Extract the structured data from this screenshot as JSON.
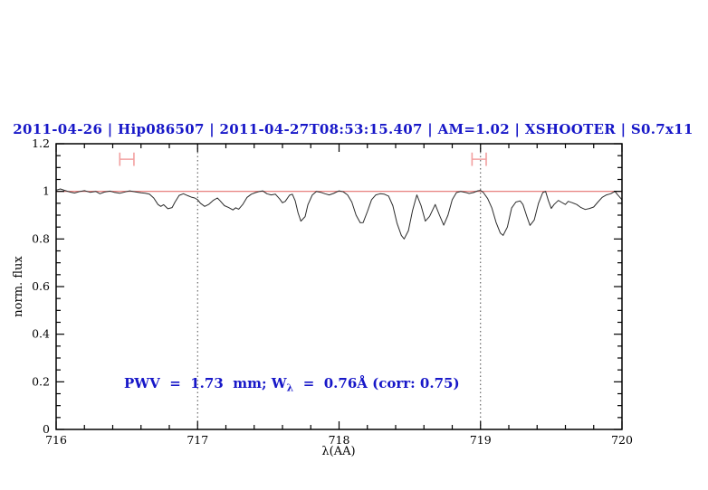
{
  "chart_data": {
    "type": "line",
    "title": "2011-04-26 | Hip086507 | 2011-04-27T08:53:15.407 | AM=1.02 | XSHOOTER | S0.7x11",
    "title_color": "#1717c8",
    "xlabel": "λ(AA)",
    "ylabel": "norm. flux",
    "xlim": [
      716,
      720
    ],
    "ylim": [
      0,
      1.2
    ],
    "grid": "off",
    "x_major_ticks": [
      716,
      717,
      718,
      719,
      720
    ],
    "x_tick_labels": [
      "716",
      "717",
      "718",
      "719",
      "720"
    ],
    "x_minor_step": 0.2,
    "y_major_ticks": [
      0,
      0.2,
      0.4,
      0.6,
      0.8,
      1,
      1.2
    ],
    "y_tick_labels": [
      "0",
      "0.2",
      "0.4",
      "0.6",
      "0.8",
      "1",
      "1.2"
    ],
    "y_minor_step": 0.05,
    "vlines": {
      "x": [
        717,
        719
      ],
      "style": "dotted",
      "color": "#4a4a4a"
    },
    "continuum": {
      "y": 1.0,
      "color": "#e4706e"
    },
    "band_markers": [
      {
        "x_from": 716.45,
        "x_to": 716.55,
        "y": 1.135,
        "cap_half_height": 0.028
      },
      {
        "x_from": 718.94,
        "x_to": 719.04,
        "y": 1.135,
        "cap_half_height": 0.028
      }
    ],
    "band_marker_color": "#f2a0a0",
    "annotation": {
      "prefix": "PWV  =  1.73  mm; W",
      "sub": "λ",
      "suffix": "  =  0.76Å (corr: 0.75)",
      "color": "#1717c8"
    },
    "series": [
      {
        "name": "spectrum",
        "color": "#2b2b2b",
        "points": [
          [
            716.0,
            1.005
          ],
          [
            716.03,
            1.01
          ],
          [
            716.06,
            1.004
          ],
          [
            716.1,
            0.997
          ],
          [
            716.13,
            0.993
          ],
          [
            716.17,
            1.0
          ],
          [
            716.2,
            1.003
          ],
          [
            716.24,
            0.996
          ],
          [
            716.28,
            1.0
          ],
          [
            716.31,
            0.99
          ],
          [
            716.34,
            0.997
          ],
          [
            716.38,
            1.001
          ],
          [
            716.41,
            0.996
          ],
          [
            716.45,
            0.992
          ],
          [
            716.49,
            0.998
          ],
          [
            716.52,
            1.002
          ],
          [
            716.56,
            0.998
          ],
          [
            716.6,
            0.994
          ],
          [
            716.63,
            0.992
          ],
          [
            716.66,
            0.988
          ],
          [
            716.69,
            0.972
          ],
          [
            716.72,
            0.945
          ],
          [
            716.74,
            0.937
          ],
          [
            716.76,
            0.944
          ],
          [
            716.79,
            0.927
          ],
          [
            716.82,
            0.932
          ],
          [
            716.84,
            0.955
          ],
          [
            716.87,
            0.983
          ],
          [
            716.9,
            0.99
          ],
          [
            716.93,
            0.982
          ],
          [
            716.96,
            0.975
          ],
          [
            716.98,
            0.972
          ],
          [
            717.0,
            0.965
          ],
          [
            717.02,
            0.95
          ],
          [
            717.05,
            0.937
          ],
          [
            717.08,
            0.946
          ],
          [
            717.11,
            0.962
          ],
          [
            717.14,
            0.972
          ],
          [
            717.16,
            0.96
          ],
          [
            717.19,
            0.94
          ],
          [
            717.22,
            0.932
          ],
          [
            717.25,
            0.922
          ],
          [
            717.27,
            0.931
          ],
          [
            717.29,
            0.925
          ],
          [
            717.32,
            0.946
          ],
          [
            717.35,
            0.975
          ],
          [
            717.38,
            0.988
          ],
          [
            717.41,
            0.995
          ],
          [
            717.44,
            1.0
          ],
          [
            717.46,
            1.002
          ],
          [
            717.49,
            0.99
          ],
          [
            717.52,
            0.985
          ],
          [
            717.55,
            0.988
          ],
          [
            717.58,
            0.968
          ],
          [
            717.6,
            0.952
          ],
          [
            717.62,
            0.958
          ],
          [
            717.65,
            0.984
          ],
          [
            717.67,
            0.988
          ],
          [
            717.69,
            0.96
          ],
          [
            717.71,
            0.91
          ],
          [
            717.73,
            0.875
          ],
          [
            717.76,
            0.894
          ],
          [
            717.78,
            0.944
          ],
          [
            717.81,
            0.984
          ],
          [
            717.84,
            1.0
          ],
          [
            717.87,
            0.996
          ],
          [
            717.9,
            0.99
          ],
          [
            717.93,
            0.985
          ],
          [
            717.96,
            0.991
          ],
          [
            718.0,
            1.002
          ],
          [
            718.03,
            0.998
          ],
          [
            718.06,
            0.985
          ],
          [
            718.09,
            0.955
          ],
          [
            718.12,
            0.9
          ],
          [
            718.15,
            0.868
          ],
          [
            718.17,
            0.869
          ],
          [
            718.2,
            0.915
          ],
          [
            718.23,
            0.965
          ],
          [
            718.26,
            0.985
          ],
          [
            718.29,
            0.99
          ],
          [
            718.32,
            0.988
          ],
          [
            718.35,
            0.98
          ],
          [
            718.38,
            0.94
          ],
          [
            718.41,
            0.865
          ],
          [
            718.44,
            0.815
          ],
          [
            718.46,
            0.8
          ],
          [
            718.49,
            0.835
          ],
          [
            718.52,
            0.92
          ],
          [
            718.55,
            0.985
          ],
          [
            718.58,
            0.94
          ],
          [
            718.61,
            0.875
          ],
          [
            718.64,
            0.895
          ],
          [
            718.68,
            0.945
          ],
          [
            718.71,
            0.9
          ],
          [
            718.74,
            0.858
          ],
          [
            718.77,
            0.9
          ],
          [
            718.8,
            0.965
          ],
          [
            718.83,
            0.995
          ],
          [
            718.86,
            1.0
          ],
          [
            718.89,
            0.996
          ],
          [
            718.92,
            0.991
          ],
          [
            718.95,
            0.995
          ],
          [
            718.98,
            1.002
          ],
          [
            719.0,
            1.004
          ],
          [
            719.02,
            0.995
          ],
          [
            719.05,
            0.97
          ],
          [
            719.08,
            0.93
          ],
          [
            719.11,
            0.87
          ],
          [
            719.14,
            0.825
          ],
          [
            719.16,
            0.815
          ],
          [
            719.19,
            0.85
          ],
          [
            719.22,
            0.93
          ],
          [
            719.25,
            0.955
          ],
          [
            719.28,
            0.96
          ],
          [
            719.3,
            0.945
          ],
          [
            719.33,
            0.89
          ],
          [
            719.35,
            0.857
          ],
          [
            719.38,
            0.88
          ],
          [
            719.41,
            0.95
          ],
          [
            719.44,
            0.995
          ],
          [
            719.46,
            1.0
          ],
          [
            719.48,
            0.96
          ],
          [
            719.5,
            0.928
          ],
          [
            719.52,
            0.945
          ],
          [
            719.55,
            0.962
          ],
          [
            719.57,
            0.955
          ],
          [
            719.6,
            0.945
          ],
          [
            719.62,
            0.958
          ],
          [
            719.65,
            0.952
          ],
          [
            719.68,
            0.945
          ],
          [
            719.71,
            0.932
          ],
          [
            719.74,
            0.924
          ],
          [
            719.77,
            0.928
          ],
          [
            719.8,
            0.934
          ],
          [
            719.83,
            0.955
          ],
          [
            719.86,
            0.975
          ],
          [
            719.89,
            0.985
          ],
          [
            719.92,
            0.99
          ],
          [
            719.95,
            1.0
          ],
          [
            719.97,
            0.985
          ],
          [
            720.0,
            0.965
          ]
        ]
      }
    ]
  }
}
